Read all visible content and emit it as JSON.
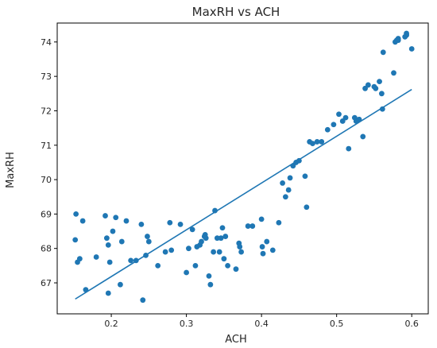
{
  "chart_data": {
    "type": "scatter",
    "title": "MaxRH vs ACH",
    "xlabel": "ACH",
    "ylabel": "MaxRH",
    "xlim": [
      0.128,
      0.622
    ],
    "ylim": [
      66.1,
      74.55
    ],
    "xticks": [
      0.2,
      0.3,
      0.4,
      0.5,
      0.6
    ],
    "xtick_labels": [
      "0.2",
      "0.3",
      "0.4",
      "0.5",
      "0.6"
    ],
    "yticks": [
      67,
      68,
      69,
      70,
      71,
      72,
      73,
      74
    ],
    "ytick_labels": [
      "67",
      "68",
      "69",
      "70",
      "71",
      "72",
      "73",
      "74"
    ],
    "grid": false,
    "legend": "none",
    "colors": {
      "points": "#1f77b4",
      "line": "#1f77b4",
      "axes": "#000000"
    },
    "series": [
      {
        "kind": "points",
        "x": [
          0.152,
          0.153,
          0.155,
          0.158,
          0.162,
          0.166,
          0.18,
          0.192,
          0.194,
          0.196,
          0.196,
          0.198,
          0.202,
          0.206,
          0.212,
          0.214,
          0.22,
          0.226,
          0.233,
          0.24,
          0.242,
          0.246,
          0.248,
          0.25,
          0.262,
          0.272,
          0.278,
          0.28,
          0.292,
          0.3,
          0.303,
          0.308,
          0.312,
          0.314,
          0.318,
          0.32,
          0.324,
          0.325,
          0.326,
          0.33,
          0.332,
          0.336,
          0.338,
          0.341,
          0.344,
          0.346,
          0.348,
          0.35,
          0.352,
          0.355,
          0.366,
          0.37,
          0.371,
          0.373,
          0.382,
          0.388,
          0.4,
          0.401,
          0.402,
          0.407,
          0.415,
          0.423,
          0.428,
          0.432,
          0.436,
          0.438,
          0.442,
          0.446,
          0.45,
          0.458,
          0.46,
          0.464,
          0.468,
          0.474,
          0.48,
          0.488,
          0.496,
          0.503,
          0.508,
          0.512,
          0.516,
          0.524,
          0.526,
          0.53,
          0.535,
          0.538,
          0.542,
          0.55,
          0.552,
          0.557,
          0.56,
          0.561,
          0.562,
          0.576,
          0.578,
          0.58,
          0.582,
          0.582,
          0.591,
          0.593,
          0.593,
          0.6
        ],
        "y": [
          68.25,
          69.0,
          67.6,
          67.7,
          68.8,
          66.8,
          67.75,
          68.95,
          68.3,
          68.1,
          66.7,
          67.6,
          68.5,
          68.9,
          66.95,
          68.2,
          68.8,
          67.65,
          67.65,
          68.7,
          66.5,
          67.8,
          68.35,
          68.2,
          67.5,
          67.9,
          68.75,
          67.95,
          68.7,
          67.3,
          68.0,
          68.55,
          67.5,
          68.05,
          68.1,
          68.2,
          68.35,
          68.4,
          68.3,
          67.2,
          66.95,
          67.9,
          69.1,
          68.3,
          67.9,
          68.3,
          68.6,
          67.7,
          68.35,
          67.5,
          67.4,
          68.15,
          68.05,
          67.9,
          68.65,
          68.65,
          68.85,
          68.05,
          67.85,
          68.2,
          67.95,
          68.75,
          69.9,
          69.5,
          69.7,
          70.05,
          70.4,
          70.5,
          70.55,
          70.1,
          69.2,
          71.1,
          71.05,
          71.1,
          71.1,
          71.45,
          71.6,
          71.9,
          71.7,
          71.8,
          70.9,
          71.8,
          71.7,
          71.75,
          71.25,
          72.65,
          72.75,
          72.7,
          72.65,
          72.85,
          72.5,
          72.05,
          73.7,
          73.1,
          74.0,
          74.05,
          74.1,
          74.05,
          74.15,
          74.25,
          74.2,
          73.8
        ]
      },
      {
        "kind": "regression-line",
        "x": [
          0.152,
          0.6
        ],
        "y": [
          66.53,
          72.62
        ]
      }
    ]
  }
}
